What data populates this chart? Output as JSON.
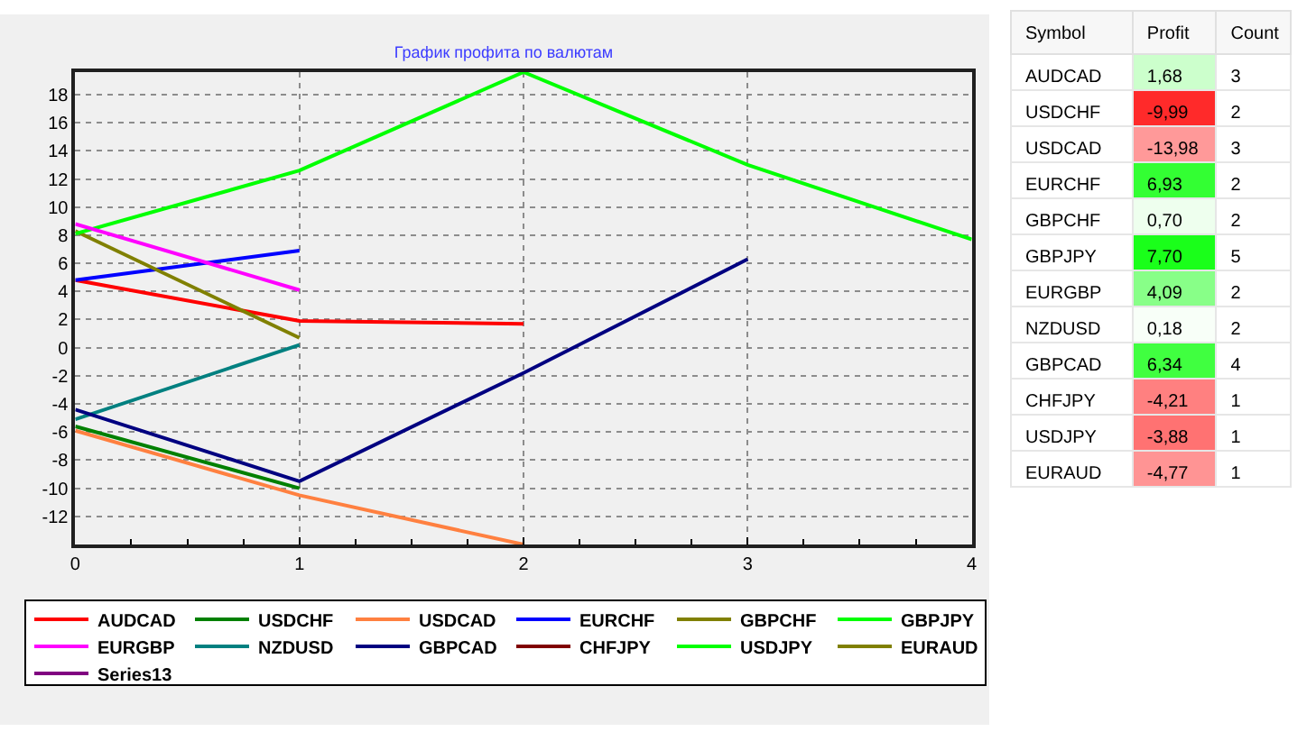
{
  "chart_data": [
    {
      "type": "line",
      "title": "График профита по валютам",
      "x": [
        0,
        1,
        2,
        3,
        4
      ],
      "xlim": [
        0,
        4
      ],
      "xticks": [
        0,
        {
          "value": 0.25,
          "label": null
        },
        {
          "value": 0.5,
          "label": null
        },
        {
          "value": 0.75,
          "label": null
        },
        1,
        {
          "value": 1.25,
          "label": null
        },
        {
          "value": 1.5,
          "label": null
        },
        {
          "value": 1.75,
          "label": null
        },
        2,
        {
          "value": 2.25,
          "label": null
        },
        {
          "value": 2.5,
          "label": null
        },
        {
          "value": 2.75,
          "label": null
        },
        3,
        {
          "value": 3.25,
          "label": null
        },
        {
          "value": 3.5,
          "label": null
        },
        {
          "value": 3.75,
          "label": null
        },
        4
      ],
      "ylim": [
        -14,
        19.6
      ],
      "yticks": [
        -12,
        -10,
        -8,
        -6,
        -4,
        -2,
        0,
        2,
        4,
        6,
        8,
        10,
        12,
        14,
        16,
        18
      ],
      "grid": true,
      "legend": "bottom",
      "series": [
        {
          "name": "AUDCAD",
          "color": "#ff0000",
          "values": [
            4.8,
            1.9,
            1.7,
            null,
            null
          ]
        },
        {
          "name": "USDCHF",
          "color": "#008000",
          "values": [
            -5.6,
            -10.0,
            null,
            null,
            null
          ]
        },
        {
          "name": "USDCAD",
          "color": "#ff8040",
          "values": [
            -5.9,
            -10.5,
            -14.0,
            null,
            null
          ]
        },
        {
          "name": "EURCHF",
          "color": "#0000ff",
          "values": [
            4.8,
            6.9,
            null,
            null,
            null
          ]
        },
        {
          "name": "GBPCHF",
          "color": "#808000",
          "values": [
            8.3,
            0.7,
            null,
            null,
            null
          ]
        },
        {
          "name": "GBPJPY",
          "color": "#00ff00",
          "values": [
            8.1,
            12.6,
            19.6,
            13.0,
            7.7
          ]
        },
        {
          "name": "EURGBP",
          "color": "#ff00ff",
          "values": [
            8.8,
            4.1,
            null,
            null,
            null
          ]
        },
        {
          "name": "NZDUSD",
          "color": "#008080",
          "values": [
            -5.1,
            0.2,
            null,
            null,
            null
          ]
        },
        {
          "name": "GBPCAD",
          "color": "#000080",
          "values": [
            -4.4,
            -9.5,
            -1.8,
            6.3,
            null
          ]
        },
        {
          "name": "CHFJPY",
          "color": "#800000",
          "values": [
            null,
            null,
            null,
            null,
            null
          ]
        },
        {
          "name": "USDJPY",
          "color": "#00ff00",
          "values": [
            null,
            null,
            null,
            null,
            null
          ]
        },
        {
          "name": "EURAUD",
          "color": "#808000",
          "values": [
            null,
            null,
            null,
            null,
            null
          ]
        },
        {
          "name": "Series13",
          "color": "#800080",
          "values": [
            null,
            null,
            null,
            null,
            null
          ]
        }
      ]
    },
    {
      "type": "other",
      "xlabel": "Symbol",
      "categories": [
        "AUDCAD",
        "USDCHF",
        "USDCAD",
        "EURCHF",
        "GBPCHF",
        "GBPJPY",
        "EURGBP",
        "NZDUSD",
        "GBPCAD",
        "CHFJPY",
        "USDJPY",
        "EURAUD"
      ],
      "data_labels": true,
      "series": [
        {
          "name": "Profit",
          "values": [
            1.68,
            -9.99,
            -13.98,
            6.93,
            0.7,
            7.7,
            4.09,
            0.18,
            6.34,
            -4.21,
            -3.88,
            -4.77
          ],
          "value_labels": [
            "1,68",
            "-9,99",
            "-13,98",
            "6,93",
            "0,70",
            "7,70",
            "4,09",
            "0,18",
            "6,34",
            "-4,21",
            "-3,88",
            "-4,77"
          ],
          "colors": [
            "#ccffcc",
            "#ff2a2a",
            "#ff9999",
            "#33ff33",
            "#eeffee",
            "#1aff1a",
            "#88ff88",
            "#f8fff8",
            "#40ff40",
            "#ff8080",
            "#ff7272",
            "#ff9494"
          ]
        },
        {
          "name": "Count",
          "values": [
            3,
            2,
            3,
            2,
            2,
            5,
            2,
            2,
            4,
            1,
            1,
            1
          ]
        }
      ]
    }
  ]
}
